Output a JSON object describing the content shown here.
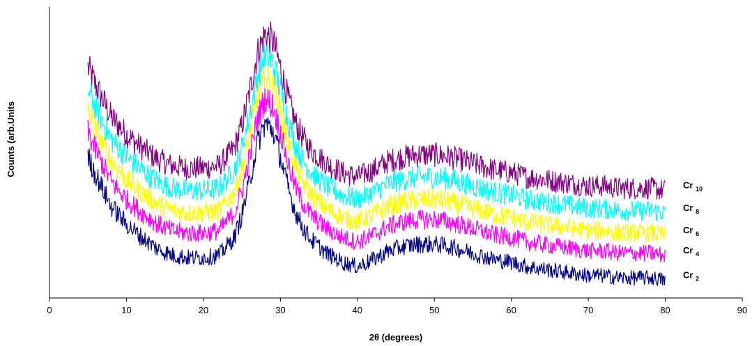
{
  "chart_data": {
    "type": "line",
    "title": "",
    "xlabel": "2θ (degrees)",
    "ylabel": "Counts (arb.Units",
    "xlim": [
      0,
      90
    ],
    "xticks": [
      0,
      10,
      20,
      30,
      40,
      50,
      60,
      70,
      80,
      90
    ],
    "y_tick_labels_shown": false,
    "grid": false,
    "legend": "inline labels at right end of each curve",
    "note_values": "y values are approximate relative counts (arbitrary units) read from the smoothed envelope of each noisy curve",
    "x": [
      5,
      6,
      8,
      10,
      12,
      14,
      16,
      18,
      20,
      22,
      24,
      25,
      26,
      27,
      28,
      29,
      30,
      31,
      32,
      33,
      34,
      35,
      36,
      38,
      40,
      42,
      44,
      46,
      48,
      50,
      52,
      54,
      56,
      58,
      60,
      62,
      64,
      66,
      68,
      70,
      72,
      74,
      76,
      78,
      80
    ],
    "series": [
      {
        "name": "Cr 2",
        "label_main": "Cr",
        "label_sub": "2",
        "color": "#000080",
        "values": [
          58,
          50,
          36,
          28,
          22,
          17,
          14,
          13,
          13,
          14,
          22,
          32,
          47,
          64,
          73,
          70,
          58,
          44,
          33,
          26,
          21,
          18,
          15,
          11,
          9,
          12,
          16,
          18,
          19,
          19,
          18,
          16,
          14,
          12,
          11,
          9,
          8,
          7,
          6,
          5,
          5,
          4,
          4,
          4,
          3
        ]
      },
      {
        "name": "Cr 4",
        "label_main": "Cr",
        "label_sub": "4",
        "color": "#ff00ff",
        "values": [
          69,
          61,
          47,
          39,
          33,
          28,
          25,
          24,
          24,
          25,
          33,
          43,
          58,
          75,
          84,
          81,
          69,
          55,
          44,
          37,
          32,
          29,
          26,
          22,
          20,
          23,
          27,
          29,
          30,
          30,
          29,
          27,
          25,
          23,
          22,
          20,
          19,
          18,
          17,
          16,
          16,
          15,
          15,
          15,
          14
        ]
      },
      {
        "name": "Cr 6",
        "label_main": "Cr",
        "label_sub": "6",
        "color": "#ffff00",
        "values": [
          78,
          70,
          56,
          48,
          42,
          37,
          34,
          33,
          33,
          34,
          42,
          52,
          67,
          84,
          93,
          90,
          78,
          64,
          53,
          46,
          41,
          38,
          35,
          31,
          29,
          32,
          36,
          38,
          39,
          39,
          38,
          36,
          34,
          32,
          31,
          29,
          28,
          27,
          26,
          25,
          25,
          24,
          24,
          24,
          23
        ]
      },
      {
        "name": "Cr 8",
        "label_main": "Cr",
        "label_sub": "8",
        "color": "#00ffff",
        "values": [
          88,
          80,
          66,
          58,
          52,
          47,
          44,
          43,
          43,
          44,
          52,
          62,
          77,
          94,
          103,
          100,
          88,
          74,
          63,
          56,
          51,
          48,
          45,
          41,
          39,
          42,
          46,
          48,
          49,
          49,
          48,
          46,
          44,
          42,
          41,
          39,
          38,
          37,
          36,
          35,
          35,
          34,
          34,
          34,
          33
        ]
      },
      {
        "name": "Cr 10",
        "label_main": "Cr",
        "label_sub": "10",
        "color": "#800080",
        "values": [
          98,
          90,
          76,
          68,
          62,
          57,
          54,
          53,
          53,
          54,
          62,
          72,
          87,
          104,
          113,
          110,
          98,
          84,
          73,
          66,
          61,
          58,
          55,
          51,
          49,
          52,
          56,
          58,
          59,
          59,
          58,
          56,
          54,
          52,
          51,
          49,
          48,
          47,
          46,
          45,
          45,
          44,
          44,
          44,
          43
        ]
      }
    ],
    "ylim": [
      -5,
      125
    ]
  }
}
